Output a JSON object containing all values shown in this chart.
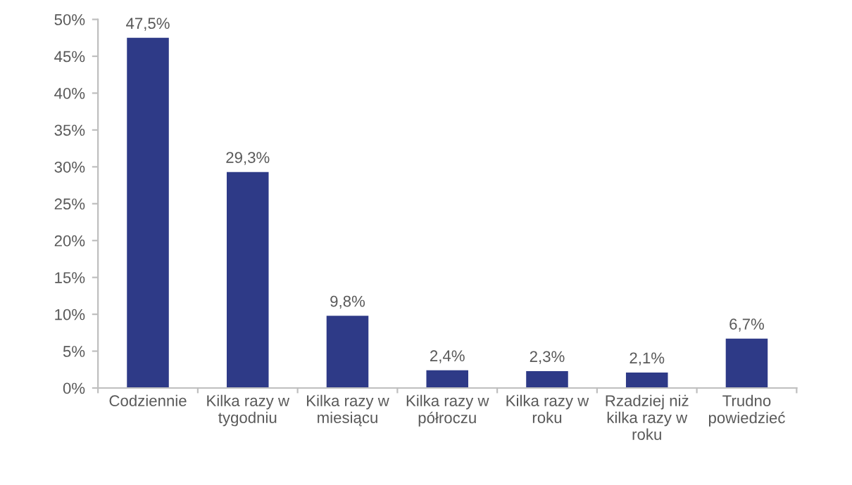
{
  "chart_data": {
    "type": "bar",
    "categories": [
      "Codziennie",
      "Kilka razy w\ntygodniu",
      "Kilka razy w\nmiesiącu",
      "Kilka razy w\npółroczu",
      "Kilka razy w\nroku",
      "Rzadziej niż\nkilka razy w\nroku",
      "Trudno\npowiedzieć"
    ],
    "values": [
      47.5,
      29.3,
      9.8,
      2.4,
      2.3,
      2.1,
      6.7
    ],
    "value_labels": [
      "47,5%",
      "29,3%",
      "9,8%",
      "2,4%",
      "2,3%",
      "2,1%",
      "6,7%"
    ],
    "color": "#2e3a87",
    "ylim": [
      0,
      50
    ],
    "yticks": [
      {
        "value": 0,
        "label": "0%"
      },
      {
        "value": 5,
        "label": "5%"
      },
      {
        "value": 10,
        "label": "10%"
      },
      {
        "value": 15,
        "label": "15%"
      },
      {
        "value": 20,
        "label": "20%"
      },
      {
        "value": 25,
        "label": "25%"
      },
      {
        "value": 30,
        "label": "30%"
      },
      {
        "value": 35,
        "label": "35%"
      },
      {
        "value": 40,
        "label": "40%"
      },
      {
        "value": 45,
        "label": "45%"
      },
      {
        "value": 50,
        "label": "50%"
      }
    ],
    "grid": false,
    "legend": false
  }
}
